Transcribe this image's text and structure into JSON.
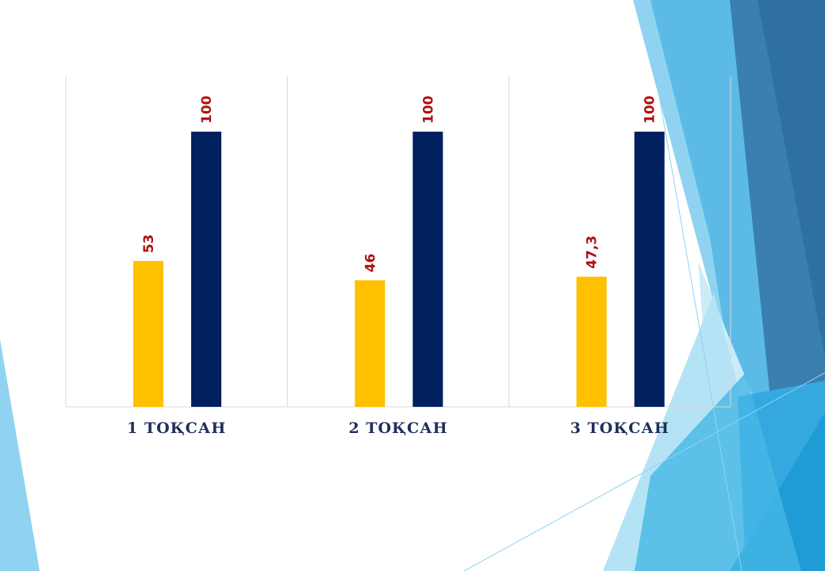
{
  "chart_data": {
    "type": "bar",
    "categories": [
      "1 ТОҚСАН",
      "2 ТОҚСАН",
      "3 ТОҚСАН"
    ],
    "series": [
      {
        "values": [
          53,
          46,
          47.3
        ],
        "labels": [
          "53",
          "46",
          "47,3"
        ],
        "color": "#ffc000"
      },
      {
        "values": [
          100,
          100,
          100
        ],
        "labels": [
          "100",
          "100",
          "100"
        ],
        "color": "#002060"
      }
    ],
    "ylim": [
      0,
      120
    ],
    "grid": "vertical category separators",
    "legend": "none",
    "label_color": "#b01010"
  },
  "theme": {
    "accent_light": "#8fd3f0",
    "accent_mid": "#4fb3e0",
    "accent_dark": "#2e6fa0"
  }
}
